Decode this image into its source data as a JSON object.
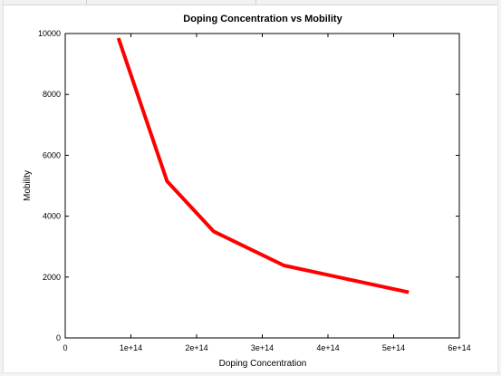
{
  "chart_data": {
    "type": "line",
    "title": "Doping Concentration vs Mobility",
    "xlabel": "Doping Concentration",
    "ylabel": "Mobility",
    "xlim": [
      0,
      600000000000000
    ],
    "ylim": [
      0,
      10000
    ],
    "x_ticks": [
      0,
      100000000000000,
      200000000000000,
      300000000000000,
      400000000000000,
      500000000000000,
      600000000000000
    ],
    "x_tick_labels": [
      "0",
      "1e+14",
      "2e+14",
      "3e+14",
      "4e+14",
      "5e+14",
      "6e+14"
    ],
    "y_ticks": [
      0,
      2000,
      4000,
      6000,
      8000,
      10000
    ],
    "y_tick_labels": [
      "0",
      "2000",
      "4000",
      "6000",
      "8000",
      "10000"
    ],
    "grid": false,
    "series": [
      {
        "color": "#ff0000",
        "x": [
          81000000000000,
          155000000000000,
          226000000000000,
          333000000000000,
          523000000000000
        ],
        "y": [
          9850,
          5150,
          3500,
          2380,
          1500
        ]
      }
    ]
  }
}
